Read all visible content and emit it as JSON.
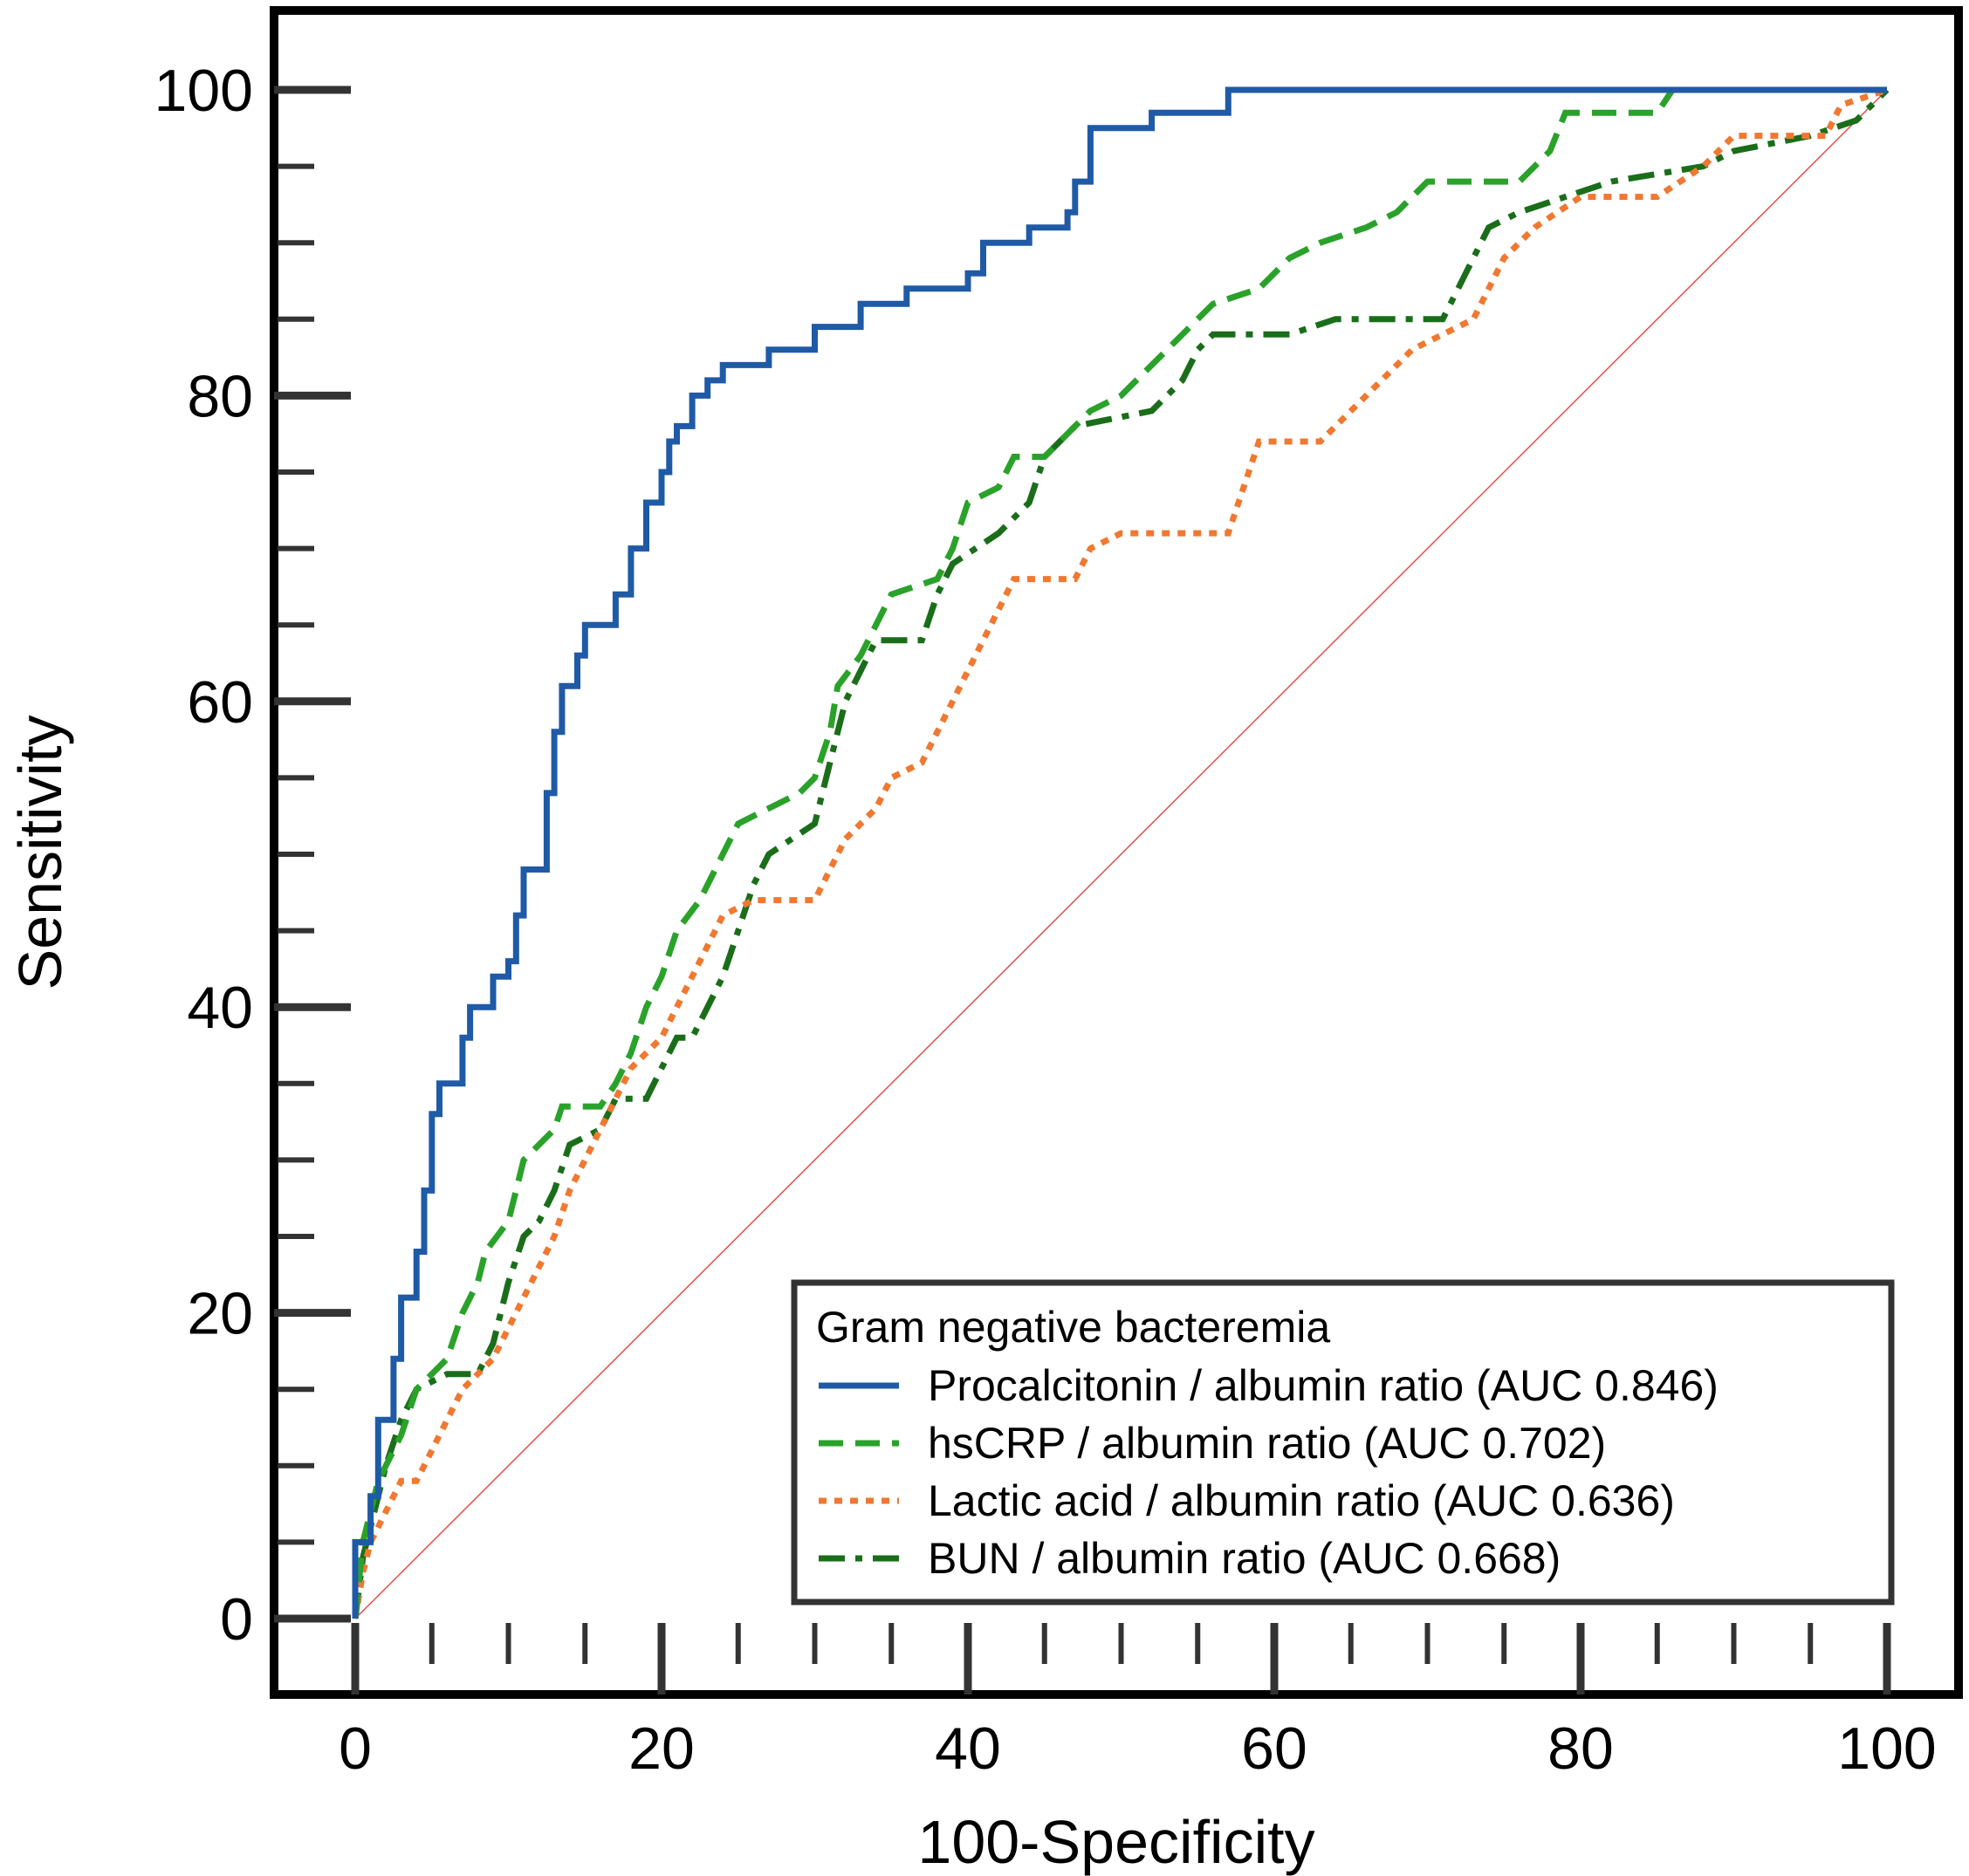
{
  "chart_data": {
    "type": "line",
    "xlabel": "100-Specificity",
    "ylabel": "Sensitivity",
    "xlim": [
      0,
      100
    ],
    "ylim": [
      0,
      100
    ],
    "x_ticks": [
      "0",
      "20",
      "40",
      "60",
      "80",
      "100"
    ],
    "y_ticks": [
      "0",
      "20",
      "40",
      "60",
      "80",
      "100"
    ],
    "grid": false,
    "legend": {
      "placement": "bottom-right",
      "title": "Gram negative bacteremia"
    },
    "reference_line": {
      "from": [
        0,
        0
      ],
      "to": [
        100,
        100
      ],
      "color": "#e0504a"
    },
    "series": [
      {
        "name": "Procalcitonin / albumin ratio (AUC 0.846)",
        "color": "#1f5aa6",
        "dash": "solid",
        "points": [
          [
            0,
            0
          ],
          [
            0,
            5
          ],
          [
            1,
            5
          ],
          [
            1,
            8
          ],
          [
            1.5,
            8
          ],
          [
            1.5,
            13
          ],
          [
            2.5,
            13
          ],
          [
            2.5,
            17
          ],
          [
            3,
            17
          ],
          [
            3,
            21
          ],
          [
            4,
            21
          ],
          [
            4,
            24
          ],
          [
            4.5,
            24
          ],
          [
            4.5,
            28
          ],
          [
            5,
            28
          ],
          [
            5,
            33
          ],
          [
            5.5,
            33
          ],
          [
            5.5,
            35
          ],
          [
            7,
            35
          ],
          [
            7,
            38
          ],
          [
            7.5,
            38
          ],
          [
            7.5,
            40
          ],
          [
            9,
            40
          ],
          [
            9,
            42
          ],
          [
            10,
            42
          ],
          [
            10,
            43
          ],
          [
            10.5,
            43
          ],
          [
            10.5,
            46
          ],
          [
            11,
            46
          ],
          [
            11,
            49
          ],
          [
            12.5,
            49
          ],
          [
            12.5,
            54
          ],
          [
            13,
            54
          ],
          [
            13,
            58
          ],
          [
            13.5,
            58
          ],
          [
            13.5,
            61
          ],
          [
            14.5,
            61
          ],
          [
            14.5,
            63
          ],
          [
            15,
            63
          ],
          [
            15,
            65
          ],
          [
            17,
            65
          ],
          [
            17,
            67
          ],
          [
            18,
            67
          ],
          [
            18,
            70
          ],
          [
            19,
            70
          ],
          [
            19,
            73
          ],
          [
            20,
            73
          ],
          [
            20,
            75
          ],
          [
            20.5,
            75
          ],
          [
            20.5,
            77
          ],
          [
            21,
            77
          ],
          [
            21,
            78
          ],
          [
            22,
            78
          ],
          [
            22,
            80
          ],
          [
            23,
            80
          ],
          [
            23,
            81
          ],
          [
            24,
            81
          ],
          [
            24,
            82
          ],
          [
            27,
            82
          ],
          [
            27,
            83
          ],
          [
            30,
            83
          ],
          [
            30,
            84.5
          ],
          [
            33,
            84.5
          ],
          [
            33,
            86
          ],
          [
            36,
            86
          ],
          [
            36,
            87
          ],
          [
            40,
            87
          ],
          [
            40,
            88
          ],
          [
            41,
            88
          ],
          [
            41,
            90
          ],
          [
            44,
            90
          ],
          [
            44,
            91
          ],
          [
            46.5,
            91
          ],
          [
            46.5,
            92
          ],
          [
            47,
            92
          ],
          [
            47,
            94
          ],
          [
            48,
            94
          ],
          [
            48,
            97.5
          ],
          [
            52,
            97.5
          ],
          [
            52,
            98.5
          ],
          [
            57,
            98.5
          ],
          [
            57,
            100
          ],
          [
            100,
            100
          ]
        ]
      },
      {
        "name": "hsCRP / albumin ratio (AUC 0.702)",
        "color": "#2aa22a",
        "dash": "dashed",
        "points": [
          [
            0,
            0
          ],
          [
            0.5,
            5
          ],
          [
            1,
            7
          ],
          [
            1.5,
            9
          ],
          [
            2,
            10
          ],
          [
            3,
            12
          ],
          [
            4,
            15
          ],
          [
            5,
            16
          ],
          [
            6,
            17
          ],
          [
            7,
            20
          ],
          [
            8,
            22
          ],
          [
            8.5,
            24
          ],
          [
            10,
            26
          ],
          [
            10.5,
            28
          ],
          [
            11,
            30
          ],
          [
            13,
            32
          ],
          [
            13.5,
            33.5
          ],
          [
            16,
            33.5
          ],
          [
            17,
            35
          ],
          [
            18,
            37
          ],
          [
            19,
            40
          ],
          [
            20,
            42
          ],
          [
            21,
            45
          ],
          [
            22.5,
            47
          ],
          [
            23,
            48
          ],
          [
            24,
            50
          ],
          [
            25,
            52
          ],
          [
            27,
            53
          ],
          [
            29,
            54
          ],
          [
            30,
            55
          ],
          [
            31,
            58
          ],
          [
            31.5,
            61
          ],
          [
            33,
            63
          ],
          [
            34,
            65
          ],
          [
            35,
            67
          ],
          [
            38,
            68
          ],
          [
            39,
            70
          ],
          [
            40,
            73
          ],
          [
            42,
            74
          ],
          [
            43,
            76
          ],
          [
            45,
            76
          ],
          [
            47,
            78
          ],
          [
            48,
            79
          ],
          [
            50,
            80
          ],
          [
            52,
            82
          ],
          [
            54,
            84
          ],
          [
            56,
            86
          ],
          [
            59,
            87
          ],
          [
            61,
            89
          ],
          [
            63,
            90
          ],
          [
            66,
            91
          ],
          [
            68,
            92
          ],
          [
            70,
            94
          ],
          [
            76,
            94
          ],
          [
            78,
            96
          ],
          [
            79,
            98.5
          ],
          [
            85,
            98.5
          ],
          [
            86,
            100
          ],
          [
            100,
            100
          ]
        ]
      },
      {
        "name": "Lactic acid / albumin ratio (AUC 0.636)",
        "color": "#f07830",
        "dash": "dotted",
        "points": [
          [
            0,
            0
          ],
          [
            0.5,
            3
          ],
          [
            1,
            5
          ],
          [
            2,
            7
          ],
          [
            3,
            9
          ],
          [
            4,
            9
          ],
          [
            5,
            11
          ],
          [
            6,
            13
          ],
          [
            7,
            15
          ],
          [
            8,
            16
          ],
          [
            9,
            17
          ],
          [
            10,
            19
          ],
          [
            11,
            21
          ],
          [
            12,
            23
          ],
          [
            13,
            25
          ],
          [
            14,
            28
          ],
          [
            15,
            30
          ],
          [
            16,
            32
          ],
          [
            17,
            34
          ],
          [
            18,
            36
          ],
          [
            20,
            38
          ],
          [
            21,
            40
          ],
          [
            22,
            42
          ],
          [
            23,
            44
          ],
          [
            24,
            46
          ],
          [
            26,
            47
          ],
          [
            30,
            47
          ],
          [
            31,
            49
          ],
          [
            32,
            51
          ],
          [
            34,
            53
          ],
          [
            35,
            55
          ],
          [
            37,
            56
          ],
          [
            38,
            58
          ],
          [
            39,
            60
          ],
          [
            40,
            62
          ],
          [
            41,
            64
          ],
          [
            42,
            66
          ],
          [
            43,
            68
          ],
          [
            47,
            68
          ],
          [
            48,
            70
          ],
          [
            50,
            71
          ],
          [
            57,
            71
          ],
          [
            58,
            74
          ],
          [
            59,
            77
          ],
          [
            63,
            77
          ],
          [
            65,
            79
          ],
          [
            67,
            81
          ],
          [
            69,
            83
          ],
          [
            73,
            85
          ],
          [
            74,
            87
          ],
          [
            75,
            89
          ],
          [
            77,
            91
          ],
          [
            80,
            93
          ],
          [
            85,
            93
          ],
          [
            88,
            95
          ],
          [
            90,
            97
          ],
          [
            96,
            97
          ],
          [
            97,
            99
          ],
          [
            100,
            100
          ]
        ]
      },
      {
        "name": "BUN / albumin ratio (AUC 0.668)",
        "color": "#1a6e1a",
        "dash": "dashdot",
        "points": [
          [
            0,
            0
          ],
          [
            0.5,
            4
          ],
          [
            1,
            6
          ],
          [
            1.5,
            8
          ],
          [
            2,
            10
          ],
          [
            3,
            13
          ],
          [
            4,
            15
          ],
          [
            6,
            16
          ],
          [
            8,
            16
          ],
          [
            9,
            18
          ],
          [
            10,
            22
          ],
          [
            11,
            25
          ],
          [
            12,
            26
          ],
          [
            13,
            28
          ],
          [
            14,
            31
          ],
          [
            16,
            32
          ],
          [
            17,
            34
          ],
          [
            19,
            34
          ],
          [
            20,
            36
          ],
          [
            21,
            38
          ],
          [
            22,
            38
          ],
          [
            23,
            40
          ],
          [
            24,
            42
          ],
          [
            25,
            45
          ],
          [
            26,
            48
          ],
          [
            27,
            50
          ],
          [
            30,
            52
          ],
          [
            31,
            56
          ],
          [
            32,
            60
          ],
          [
            33,
            62
          ],
          [
            34,
            64
          ],
          [
            37,
            64
          ],
          [
            38,
            67
          ],
          [
            39,
            69
          ],
          [
            42,
            71
          ],
          [
            44,
            73
          ],
          [
            45,
            76
          ],
          [
            47,
            78
          ],
          [
            52,
            79
          ],
          [
            54,
            81
          ],
          [
            55,
            83
          ],
          [
            56,
            84
          ],
          [
            61,
            84
          ],
          [
            64,
            85
          ],
          [
            71,
            85
          ],
          [
            72,
            87
          ],
          [
            73,
            89
          ],
          [
            74,
            91
          ],
          [
            76,
            92
          ],
          [
            79,
            93
          ],
          [
            82,
            94
          ],
          [
            88,
            95
          ],
          [
            90,
            96
          ],
          [
            95,
            97
          ],
          [
            98,
            98
          ],
          [
            100,
            100
          ]
        ]
      }
    ]
  }
}
